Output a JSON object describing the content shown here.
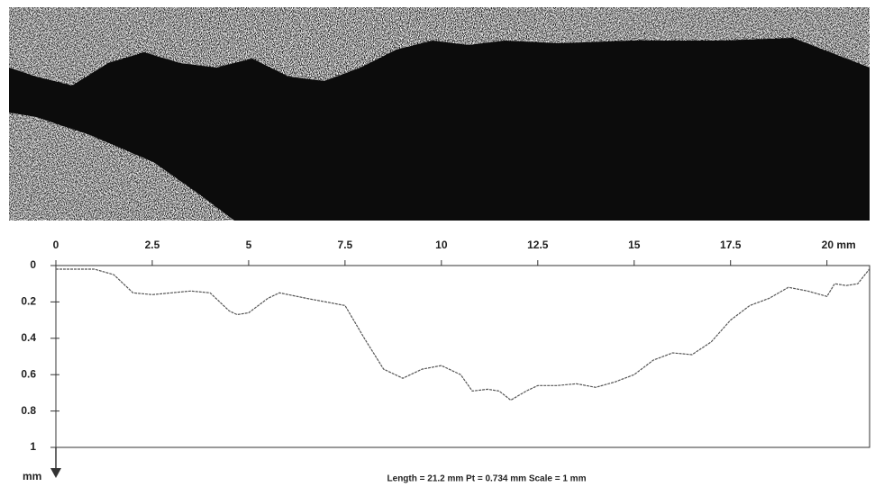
{
  "chart_data": {
    "type": "line",
    "caption": "Length = 21.2 mm  Pt = 0.734 mm  Scale = 1 mm",
    "y_unit": "mm",
    "x": [
      0,
      1,
      1.5,
      2,
      2.5,
      3,
      3.5,
      4,
      4.5,
      4.7,
      5,
      5.5,
      5.8,
      6.5,
      7,
      7.5,
      8,
      8.5,
      9,
      9.5,
      10,
      10.5,
      10.8,
      11.2,
      11.5,
      11.8,
      12.2,
      12.5,
      13,
      13.5,
      14,
      14.5,
      15,
      15.5,
      16,
      16.5,
      17,
      17.5,
      18,
      18.5,
      19,
      19.5,
      20,
      20.2,
      20.5,
      20.8,
      21.1
    ],
    "values": [
      0.02,
      0.02,
      0.05,
      0.15,
      0.16,
      0.15,
      0.14,
      0.15,
      0.25,
      0.27,
      0.26,
      0.18,
      0.15,
      0.18,
      0.2,
      0.22,
      0.4,
      0.57,
      0.62,
      0.57,
      0.55,
      0.6,
      0.69,
      0.68,
      0.69,
      0.74,
      0.69,
      0.66,
      0.66,
      0.65,
      0.67,
      0.64,
      0.6,
      0.52,
      0.48,
      0.49,
      0.42,
      0.3,
      0.22,
      0.18,
      0.12,
      0.14,
      0.17,
      0.1,
      0.11,
      0.1,
      0.02
    ],
    "color": "#555555",
    "xlim": [
      0,
      21.2
    ],
    "xticks": [
      0,
      2.5,
      5,
      7.5,
      10,
      12.5,
      15,
      17.5,
      {
        "value": 20,
        "label": "20 mm"
      }
    ],
    "ylim": [
      0,
      1
    ],
    "yticks": [
      0,
      0.2,
      0.4,
      0.6,
      0.8,
      1
    ],
    "y_inverted": true
  }
}
